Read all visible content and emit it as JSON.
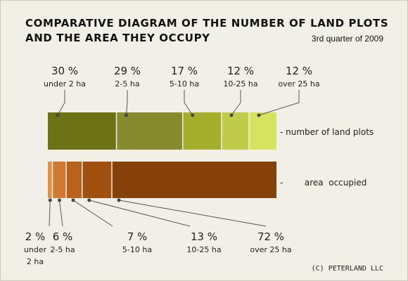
{
  "chart_data": {
    "type": "bar",
    "title_line1": "COMPARATIVE DIAGRAM OF THE NUMBER OF LAND PLOTS",
    "title_line2": "AND THE AREA THEY OCCUPY",
    "subtitle": "3rd quarter of 2009",
    "credit": "(C) PETERLAND LLC",
    "series": [
      {
        "name": "number of land plots",
        "legend_text": "-  number of land plots",
        "colors": [
          "#6b7315",
          "#868b2e",
          "#a4b02c",
          "#bfcc4a",
          "#d6e35f"
        ],
        "segments": [
          {
            "percent": 30,
            "percent_label": "30 %",
            "category": "under 2 ha"
          },
          {
            "percent": 29,
            "percent_label": "29 %",
            "category": "2-5 ha"
          },
          {
            "percent": 17,
            "percent_label": "17 %",
            "category": "5-10 ha"
          },
          {
            "percent": 12,
            "percent_label": "12 %",
            "category": "10-25 ha"
          },
          {
            "percent": 12,
            "percent_label": "12 %",
            "category": "over 25 ha"
          }
        ]
      },
      {
        "name": "area occupied",
        "legend_text": "-        area  occupied",
        "colors": [
          "#e09048",
          "#cf7a30",
          "#b8621c",
          "#a0500f",
          "#86400a"
        ],
        "segments": [
          {
            "percent": 2,
            "percent_label": "2 %",
            "category": "under 2 ha"
          },
          {
            "percent": 6,
            "percent_label": "6 %",
            "category": "2-5 ha"
          },
          {
            "percent": 7,
            "percent_label": "7 %",
            "category": "5-10 ha"
          },
          {
            "percent": 13,
            "percent_label": "13 %",
            "category": "10-25 ha"
          },
          {
            "percent": 72,
            "percent_label": "72 %",
            "category": "over 25 ha"
          }
        ]
      }
    ]
  }
}
